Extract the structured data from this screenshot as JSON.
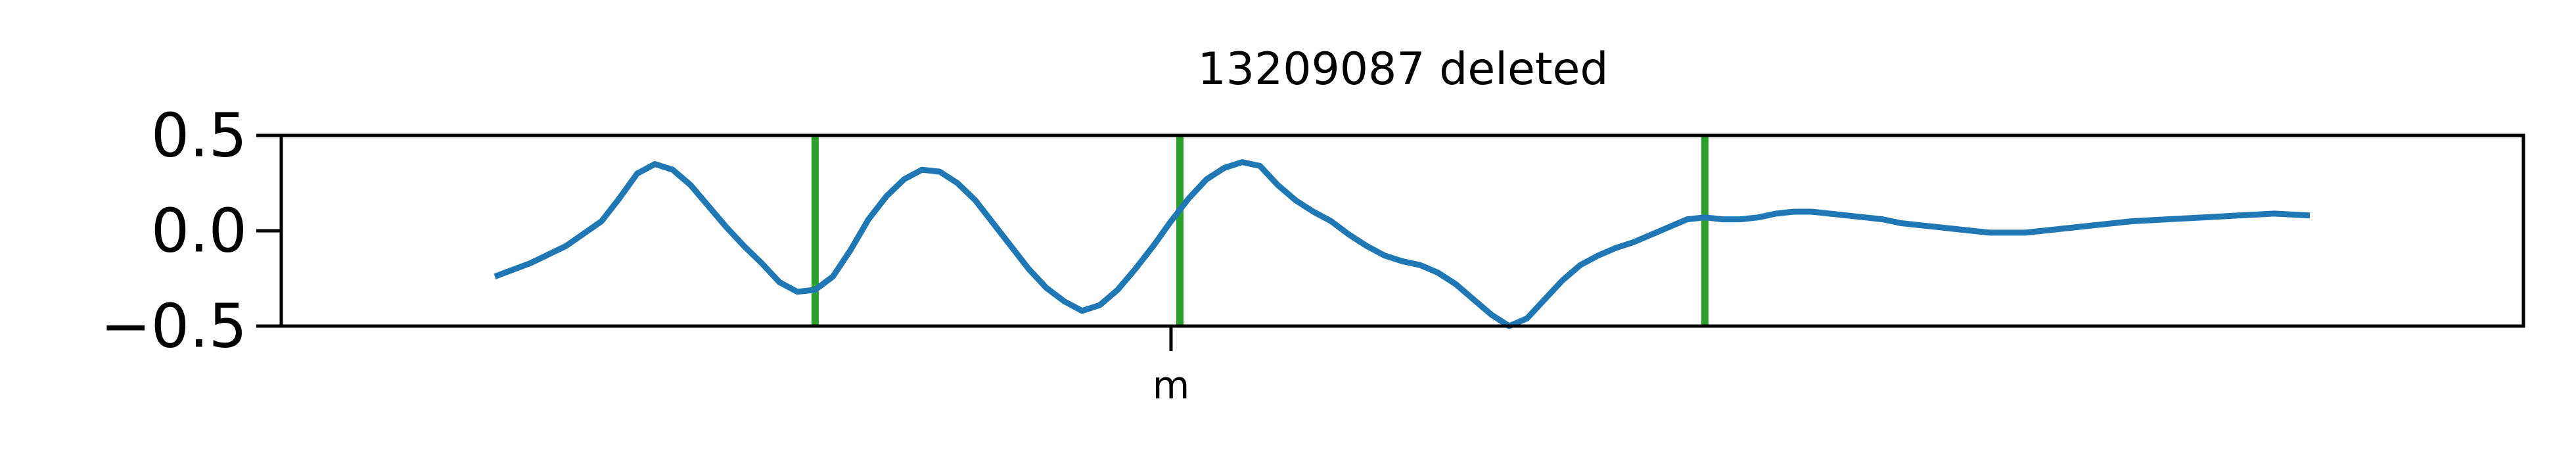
{
  "chart_data": {
    "type": "line",
    "title": "13209087 deleted",
    "xlabel": "",
    "ylabel": "",
    "xlim": [
      0,
      1.26
    ],
    "ylim": [
      -0.5,
      0.5
    ],
    "x_ticks": [
      {
        "value": 0.5,
        "label": "m"
      }
    ],
    "y_ticks": [
      {
        "value": 0.5,
        "label": "0.5"
      },
      {
        "value": 0.0,
        "label": "0.0"
      },
      {
        "value": -0.5,
        "label": "−0.5"
      }
    ],
    "grid": false,
    "legend": "none",
    "series": [
      {
        "color": "#1f77b4",
        "x": [
          0.12,
          0.14,
          0.16,
          0.18,
          0.19,
          0.2,
          0.21,
          0.22,
          0.23,
          0.24,
          0.25,
          0.26,
          0.27,
          0.28,
          0.29,
          0.3,
          0.31,
          0.32,
          0.33,
          0.34,
          0.35,
          0.36,
          0.37,
          0.38,
          0.39,
          0.4,
          0.41,
          0.42,
          0.43,
          0.44,
          0.45,
          0.46,
          0.47,
          0.48,
          0.49,
          0.5,
          0.51,
          0.52,
          0.53,
          0.54,
          0.55,
          0.56,
          0.57,
          0.58,
          0.59,
          0.6,
          0.61,
          0.62,
          0.63,
          0.64,
          0.65,
          0.66,
          0.67,
          0.68,
          0.69,
          0.7,
          0.71,
          0.72,
          0.73,
          0.74,
          0.75,
          0.76,
          0.77,
          0.78,
          0.79,
          0.8,
          0.81,
          0.82,
          0.83,
          0.84,
          0.85,
          0.86,
          0.87,
          0.88,
          0.89,
          0.9,
          0.91,
          0.92,
          0.93,
          0.94,
          0.95,
          0.96,
          0.97,
          0.98,
          0.99,
          1.0,
          1.02,
          1.04,
          1.06,
          1.08,
          1.1,
          1.12,
          1.14
        ],
        "y": [
          -0.24,
          -0.17,
          -0.08,
          0.05,
          0.17,
          0.3,
          0.35,
          0.32,
          0.24,
          0.13,
          0.02,
          -0.08,
          -0.17,
          -0.27,
          -0.32,
          -0.31,
          -0.24,
          -0.1,
          0.06,
          0.18,
          0.27,
          0.32,
          0.31,
          0.25,
          0.16,
          0.04,
          -0.08,
          -0.2,
          -0.3,
          -0.37,
          -0.42,
          -0.39,
          -0.31,
          -0.2,
          -0.08,
          0.05,
          0.17,
          0.27,
          0.33,
          0.36,
          0.34,
          0.24,
          0.16,
          0.1,
          0.05,
          -0.02,
          -0.08,
          -0.13,
          -0.16,
          -0.18,
          -0.22,
          -0.28,
          -0.36,
          -0.44,
          -0.5,
          -0.46,
          -0.36,
          -0.26,
          -0.18,
          -0.13,
          -0.09,
          -0.06,
          -0.02,
          0.02,
          0.06,
          0.07,
          0.06,
          0.06,
          0.07,
          0.09,
          0.1,
          0.1,
          0.09,
          0.08,
          0.07,
          0.06,
          0.04,
          0.03,
          0.02,
          0.01,
          0.0,
          -0.01,
          -0.01,
          -0.01,
          0.0,
          0.01,
          0.03,
          0.05,
          0.06,
          0.07,
          0.08,
          0.09,
          0.08
        ]
      }
    ],
    "vlines": [
      {
        "x": 0.3,
        "color": "#2ca02c"
      },
      {
        "x": 0.505,
        "color": "#2ca02c"
      },
      {
        "x": 0.8,
        "color": "#2ca02c"
      }
    ]
  }
}
